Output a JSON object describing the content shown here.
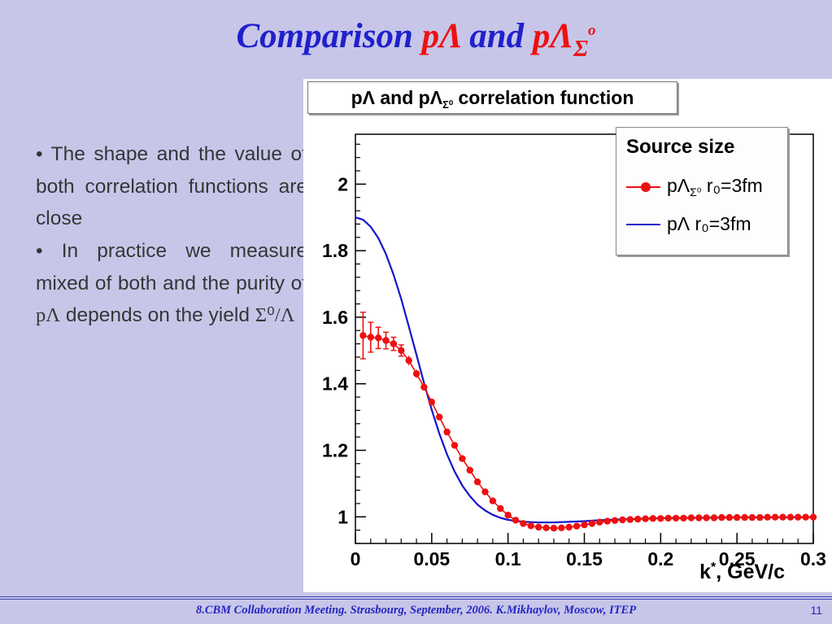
{
  "palette": {
    "bg": "#c7c6e9",
    "title_blue": "#2020cc",
    "title_red": "#ee1010",
    "footer_blue": "#2525c0",
    "text_dark": "#363636"
  },
  "slide": {
    "title": {
      "word1": "Comparison",
      "seg1": "pΛ",
      "word2": "and",
      "seg2": "pΛ",
      "sub": "Σ",
      "sup": "o"
    },
    "bullets": {
      "b1": {
        "bullet": "•",
        "text": "The shape and the value of both correlation functions are close"
      },
      "b2": {
        "bullet": "•",
        "pre": "In practice we measure mixed of both and the purity of ",
        "sym1": "pΛ",
        "mid": " depends on the yield ",
        "sym2": "Σ⁰/Λ"
      }
    },
    "footer": {
      "text": "8.CBM Collaboration Meeting. Strasbourg, September, 2006. K.Mikhaylov, Moscow, ITEP",
      "page": "11"
    }
  },
  "chart": {
    "title": {
      "pre": "pΛ and pΛ",
      "sub": "Σ⁰",
      "post": " correlation function"
    },
    "legend": {
      "title": "Source size",
      "entries": [
        {
          "color": "#ee1010",
          "marker": "circle-line",
          "pre": "pΛ",
          "sub": "Σ⁰",
          "post": " r₀=3fm"
        },
        {
          "color": "#1414cc",
          "marker": "line",
          "pre": "pΛ",
          "sub": "",
          "post": " r₀=3fm"
        }
      ]
    },
    "xlabel": {
      "main": "k",
      "sup": "*",
      "rest": ", GeV/c"
    }
  },
  "chart_data": {
    "type": "line",
    "title": "pΛ and pΛ_Σ⁰ correlation function",
    "xlabel": "k*, GeV/c",
    "ylabel": "",
    "xlim": [
      0,
      0.3
    ],
    "ylim": [
      0.92,
      2.15
    ],
    "xticks": [
      0,
      0.05,
      0.1,
      0.15,
      0.2,
      0.25,
      0.3
    ],
    "xtick_labels": [
      "0",
      "0.05",
      "0.1",
      "0.15",
      "0.2",
      "0.25",
      "0.3"
    ],
    "xminor": 0.01,
    "yticks": [
      1,
      1.2,
      1.4,
      1.6,
      1.8,
      2
    ],
    "ytick_labels": [
      "1",
      "1.2",
      "1.4",
      "1.6",
      "1.8",
      "2"
    ],
    "yminor": 0.04,
    "grid": false,
    "legend_position": "top-right",
    "series": [
      {
        "name": "pΛ_Σ⁰ r0=3fm",
        "type": "scatter-errorbar-line",
        "color": "#ee1010",
        "x": [
          0.005,
          0.01,
          0.015,
          0.02,
          0.025,
          0.03,
          0.035,
          0.04,
          0.045,
          0.05,
          0.055,
          0.06,
          0.065,
          0.07,
          0.075,
          0.08,
          0.085,
          0.09,
          0.095,
          0.1,
          0.105,
          0.11,
          0.115,
          0.12,
          0.125,
          0.13,
          0.135,
          0.14,
          0.145,
          0.15,
          0.155,
          0.16,
          0.165,
          0.17,
          0.175,
          0.18,
          0.185,
          0.19,
          0.195,
          0.2,
          0.205,
          0.21,
          0.215,
          0.22,
          0.225,
          0.23,
          0.235,
          0.24,
          0.245,
          0.25,
          0.255,
          0.26,
          0.265,
          0.27,
          0.275,
          0.28,
          0.285,
          0.29,
          0.295,
          0.3
        ],
        "y": [
          1.545,
          1.54,
          1.538,
          1.53,
          1.52,
          1.5,
          1.47,
          1.43,
          1.39,
          1.345,
          1.3,
          1.255,
          1.215,
          1.175,
          1.14,
          1.105,
          1.075,
          1.048,
          1.025,
          1.005,
          0.99,
          0.98,
          0.973,
          0.969,
          0.967,
          0.966,
          0.967,
          0.969,
          0.972,
          0.976,
          0.98,
          0.984,
          0.987,
          0.989,
          0.991,
          0.992,
          0.993,
          0.994,
          0.995,
          0.995,
          0.996,
          0.996,
          0.996,
          0.997,
          0.997,
          0.997,
          0.997,
          0.998,
          0.998,
          0.998,
          0.998,
          0.998,
          0.998,
          0.999,
          0.999,
          0.999,
          0.999,
          0.999,
          0.999,
          0.999
        ],
        "yerr": [
          0.07,
          0.045,
          0.032,
          0.025,
          0.02,
          0.017,
          0.014,
          0.012,
          0.011,
          0.01,
          0.009,
          0.009,
          0.008,
          0.008,
          0.007,
          0.007,
          0.006,
          0.006,
          0.006,
          0.005,
          0.005,
          0.005,
          0.005,
          0.005,
          0.005,
          0.005,
          0.005,
          0.005,
          0.005,
          0.005,
          0.005,
          0.005,
          0.005,
          0.005,
          0.005,
          0.005,
          0.005,
          0.005,
          0.005,
          0.005,
          0.005,
          0.005,
          0.005,
          0.005,
          0.005,
          0.005,
          0.005,
          0.005,
          0.005,
          0.005,
          0.005,
          0.005,
          0.005,
          0.005,
          0.005,
          0.005,
          0.005,
          0.005,
          0.005,
          0.005
        ]
      },
      {
        "name": "pΛ r0=3fm",
        "type": "line",
        "color": "#1414cc",
        "x": [
          0,
          0.005,
          0.01,
          0.015,
          0.02,
          0.025,
          0.03,
          0.035,
          0.04,
          0.045,
          0.05,
          0.055,
          0.06,
          0.065,
          0.07,
          0.075,
          0.08,
          0.085,
          0.09,
          0.095,
          0.1,
          0.11,
          0.12,
          0.13,
          0.14,
          0.15,
          0.16,
          0.18,
          0.2,
          0.22,
          0.25,
          0.3
        ],
        "y": [
          1.9,
          1.893,
          1.872,
          1.838,
          1.79,
          1.728,
          1.655,
          1.572,
          1.487,
          1.402,
          1.322,
          1.25,
          1.188,
          1.136,
          1.094,
          1.062,
          1.037,
          1.019,
          1.006,
          0.997,
          0.991,
          0.985,
          0.983,
          0.983,
          0.985,
          0.987,
          0.99,
          0.993,
          0.996,
          0.997,
          0.998,
          0.999
        ]
      }
    ]
  }
}
